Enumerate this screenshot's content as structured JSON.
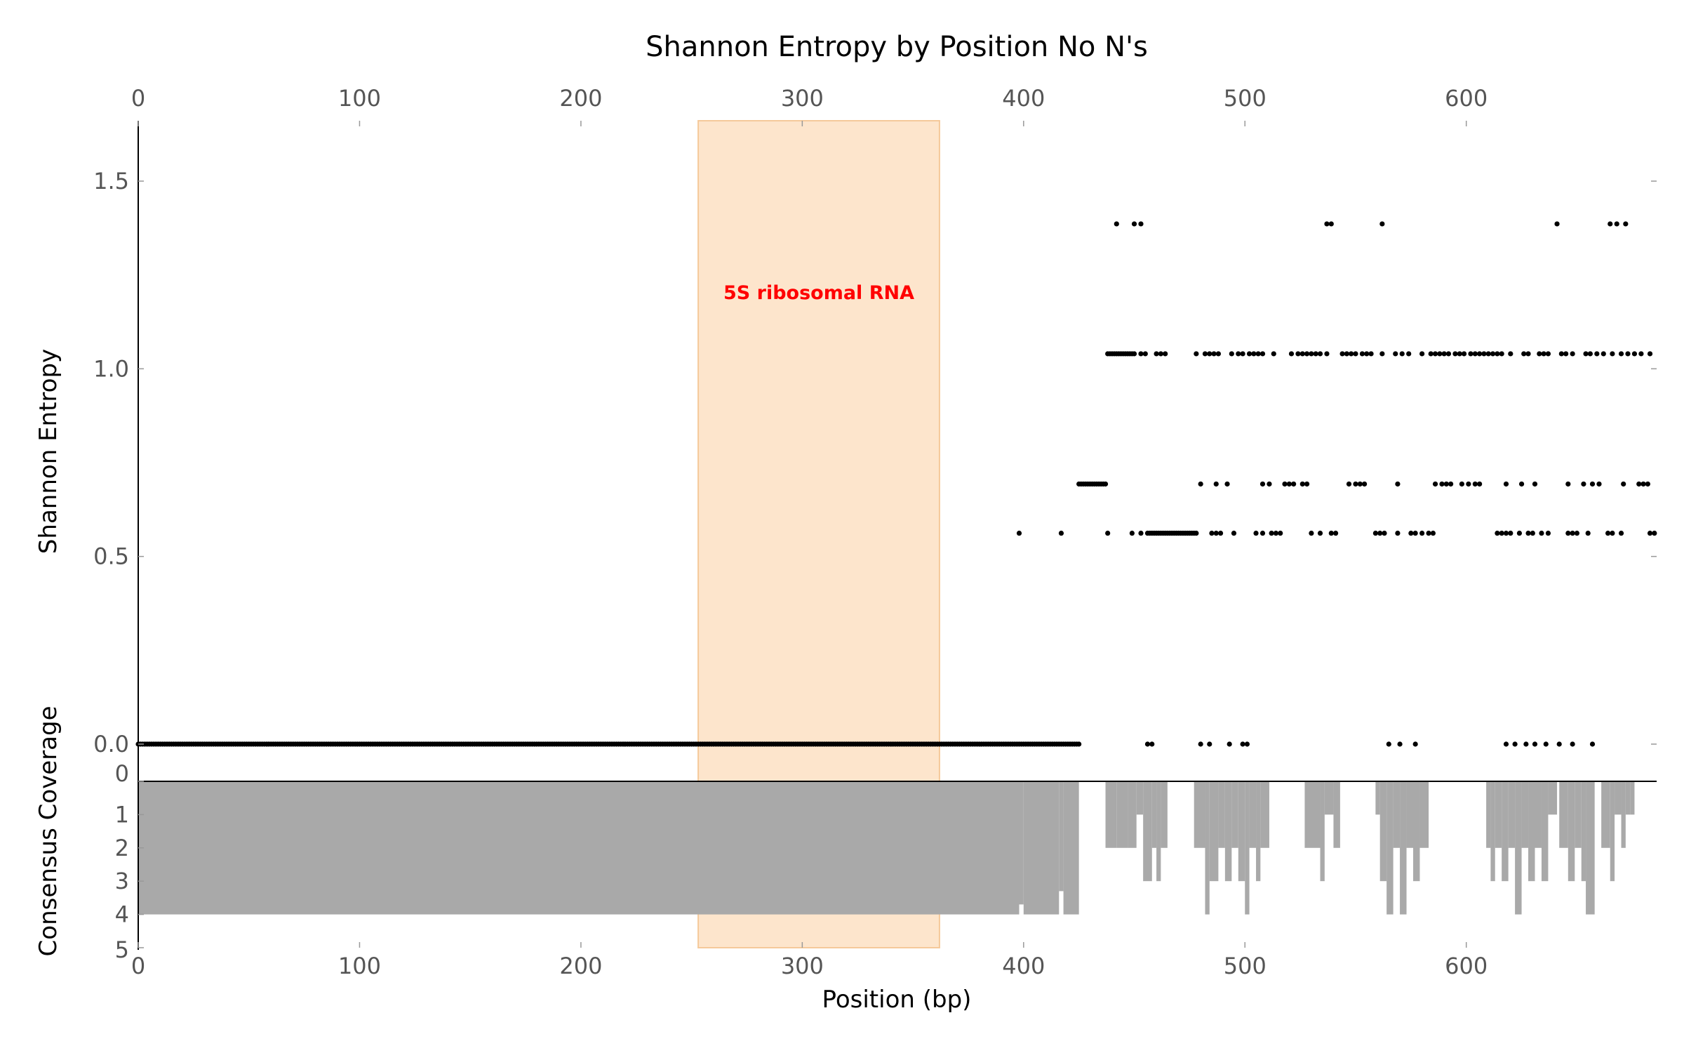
{
  "chart_data": [
    {
      "type": "scatter",
      "title": "Shannon Entropy by Position No N's",
      "ylabel": "Shannon Entropy",
      "xlim": [
        0,
        686
      ],
      "ylim": [
        0,
        1.6
      ],
      "yticks": [
        0.0,
        0.5,
        1.0,
        1.5
      ],
      "xticks": [
        0,
        100,
        200,
        300,
        400,
        500,
        600
      ],
      "grid": false,
      "region": {
        "start": 253,
        "end": 362,
        "label": "5S ribosomal RNA",
        "color": "#fde5cc"
      },
      "point_color": "#000000",
      "levels": [
        0.0,
        0.562,
        0.693,
        1.04,
        1.386
      ],
      "series": [
        {
          "points_by_level": {
            "0": {
              "ranges": [
                [
                  0,
                  425
                ]
              ],
              "points": [
                456,
                458,
                480,
                484,
                493,
                499,
                501,
                565,
                570,
                577,
                618,
                622,
                627,
                631,
                636,
                642,
                648,
                657
              ]
            },
            "0.562": {
              "ranges": [
                [
                  456,
                  478
                ]
              ],
              "points": [
                398,
                417,
                438,
                449,
                453,
                485,
                487,
                489,
                495,
                505,
                508,
                512,
                514,
                516,
                530,
                534,
                539,
                541,
                559,
                561,
                563,
                569,
                575,
                577,
                580,
                583,
                585,
                614,
                616,
                618,
                620,
                624,
                628,
                630,
                634,
                637,
                646,
                648,
                650,
                655,
                664,
                666,
                670,
                683,
                685
              ]
            },
            "0.693": {
              "ranges": [
                [
                  425,
                  437
                ]
              ],
              "points": [
                480,
                487,
                492,
                508,
                511,
                518,
                520,
                522,
                526,
                528,
                547,
                550,
                552,
                554,
                569,
                586,
                589,
                591,
                593,
                598,
                601,
                604,
                606,
                618,
                625,
                631,
                646,
                653,
                657,
                660,
                671,
                678,
                680,
                682
              ]
            },
            "1.04": {
              "ranges": [
                [
                  438,
                  450
                ]
              ],
              "points": [
                453,
                455,
                460,
                462,
                464,
                478,
                482,
                484,
                486,
                488,
                494,
                497,
                499,
                502,
                504,
                506,
                508,
                513,
                521,
                524,
                526,
                528,
                530,
                532,
                534,
                537,
                544,
                546,
                548,
                550,
                553,
                555,
                557,
                562,
                568,
                571,
                574,
                580,
                584,
                586,
                588,
                590,
                592,
                595,
                597,
                599,
                602,
                604,
                606,
                608,
                610,
                612,
                614,
                616,
                620,
                626,
                628,
                633,
                635,
                637,
                643,
                645,
                648,
                654,
                656,
                659,
                662,
                666,
                670,
                673,
                676,
                679,
                683
              ]
            },
            "1.386": {
              "ranges": [],
              "points": [
                442,
                450,
                453,
                537,
                539,
                562,
                641,
                665,
                668,
                672
              ]
            }
          }
        }
      ]
    },
    {
      "type": "bar",
      "ylabel": "Consensus Coverage",
      "xlabel": "Position (bp)",
      "xlim": [
        0,
        686
      ],
      "ylim": [
        0,
        5
      ],
      "yticks": [
        0,
        1,
        2,
        3,
        4,
        5
      ],
      "xticks": [
        0,
        100,
        200,
        300,
        400,
        500,
        600
      ],
      "inverted_y": true,
      "color": "#a9a9a9",
      "coverage_segments": [
        [
          0,
          398,
          4
        ],
        [
          398,
          400,
          3.7
        ],
        [
          400,
          416,
          4
        ],
        [
          416,
          418,
          3.3
        ],
        [
          418,
          425,
          4
        ],
        [
          437,
          442,
          2
        ],
        [
          442,
          447,
          2
        ],
        [
          447,
          451,
          2
        ],
        [
          451,
          454,
          1
        ],
        [
          454,
          458,
          3
        ],
        [
          458,
          460,
          2
        ],
        [
          460,
          462,
          3
        ],
        [
          462,
          465,
          2
        ],
        [
          477,
          482,
          2
        ],
        [
          482,
          484,
          4
        ],
        [
          484,
          488,
          3
        ],
        [
          488,
          491,
          2
        ],
        [
          491,
          494,
          3
        ],
        [
          494,
          497,
          2
        ],
        [
          497,
          500,
          3
        ],
        [
          500,
          502,
          4
        ],
        [
          502,
          505,
          2
        ],
        [
          505,
          507,
          3
        ],
        [
          507,
          511,
          2
        ],
        [
          527,
          534,
          2
        ],
        [
          534,
          536,
          3
        ],
        [
          536,
          540,
          1
        ],
        [
          540,
          543,
          2
        ],
        [
          559,
          561,
          1
        ],
        [
          561,
          564,
          3
        ],
        [
          564,
          567,
          4
        ],
        [
          567,
          570,
          2
        ],
        [
          570,
          573,
          4
        ],
        [
          573,
          576,
          2
        ],
        [
          576,
          579,
          3
        ],
        [
          579,
          583,
          2
        ],
        [
          609,
          611,
          2
        ],
        [
          611,
          613,
          3
        ],
        [
          613,
          616,
          2
        ],
        [
          616,
          619,
          3
        ],
        [
          619,
          622,
          2
        ],
        [
          622,
          625,
          4
        ],
        [
          625,
          628,
          2
        ],
        [
          628,
          631,
          3
        ],
        [
          631,
          634,
          2
        ],
        [
          634,
          637,
          3
        ],
        [
          637,
          641,
          1
        ],
        [
          642,
          646,
          2
        ],
        [
          646,
          649,
          3
        ],
        [
          649,
          652,
          2
        ],
        [
          652,
          654,
          3
        ],
        [
          654,
          658,
          4
        ],
        [
          661,
          665,
          2
        ],
        [
          665,
          667,
          3
        ],
        [
          667,
          670,
          1
        ],
        [
          670,
          672,
          2
        ],
        [
          672,
          674,
          1
        ],
        [
          674,
          676,
          1
        ]
      ]
    }
  ]
}
